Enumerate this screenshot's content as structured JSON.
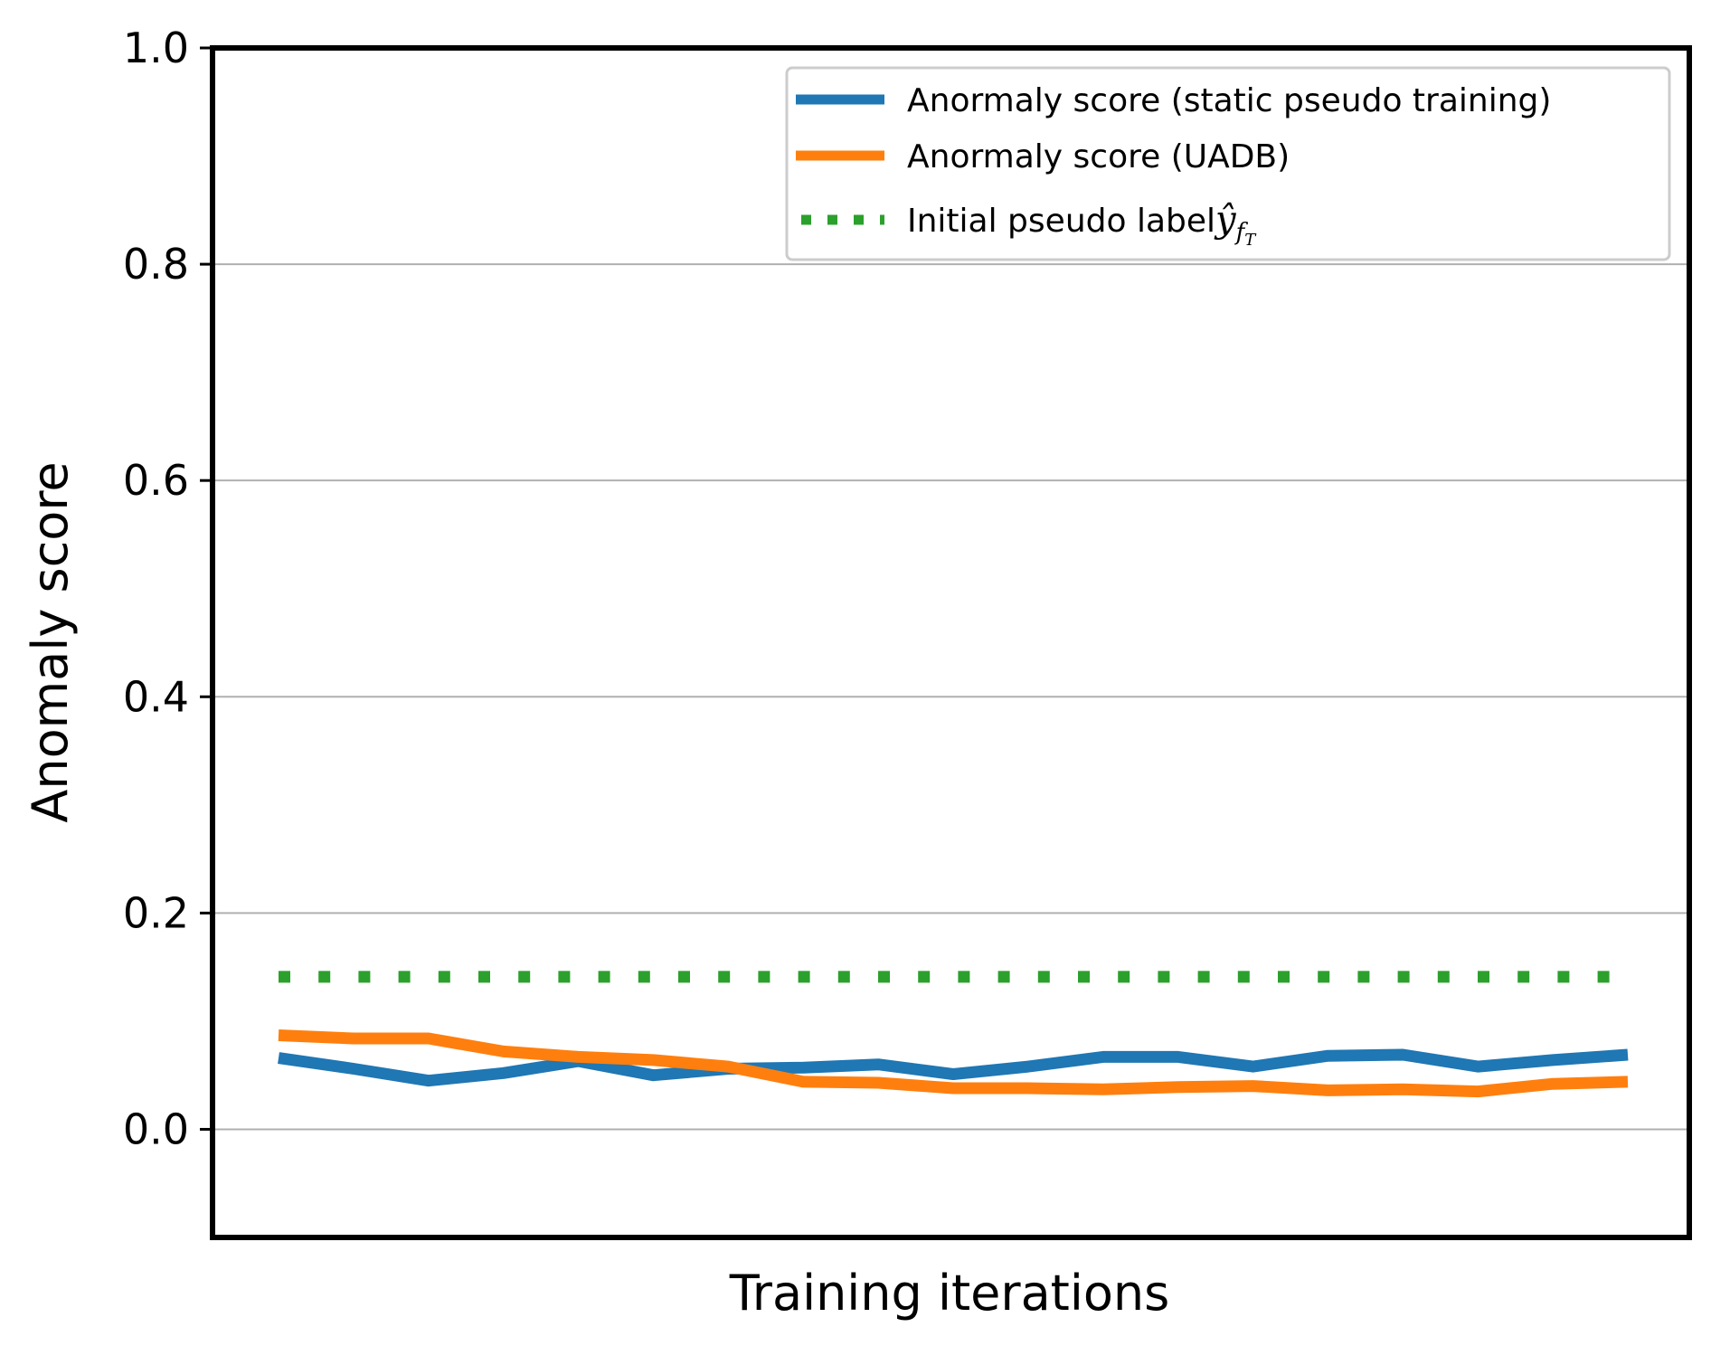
{
  "chart_data": {
    "type": "line",
    "title": "",
    "xlabel": "Training iterations",
    "ylabel": "Anomaly score",
    "ylim": [
      -0.1,
      1.0
    ],
    "yticks": [
      0.0,
      0.2,
      0.4,
      0.6,
      0.8,
      1.0
    ],
    "ytick_labels": [
      "0.0",
      "0.2",
      "0.4",
      "0.6",
      "0.8",
      "1.0"
    ],
    "x_ticks_shown": false,
    "grid": "horizontal",
    "legend_position": "upper-right",
    "x": [
      0,
      1,
      2,
      3,
      4,
      5,
      6,
      7,
      8,
      9,
      10,
      11,
      12,
      13,
      14,
      15,
      16,
      17,
      18
    ],
    "series": [
      {
        "name": "Anormaly score (static pseudo training)",
        "color": "#1f77b4",
        "style": "solid",
        "values": [
          0.066,
          0.056,
          0.045,
          0.052,
          0.063,
          0.05,
          0.056,
          0.057,
          0.06,
          0.051,
          0.058,
          0.067,
          0.067,
          0.058,
          0.068,
          0.069,
          0.058,
          0.064,
          0.069
        ]
      },
      {
        "name": "Anormaly score (UADB)",
        "color": "#ff7f0e",
        "style": "solid",
        "values": [
          0.087,
          0.084,
          0.084,
          0.072,
          0.067,
          0.064,
          0.058,
          0.044,
          0.043,
          0.038,
          0.038,
          0.037,
          0.039,
          0.04,
          0.036,
          0.037,
          0.035,
          0.042,
          0.044
        ]
      },
      {
        "name": "Initial pseudo label",
        "name_math_base": "ŷ",
        "name_math_sub": "f",
        "name_math_subsub": "T",
        "color": "#2ca02c",
        "style": "dotted",
        "values": [
          0.141,
          0.141,
          0.141,
          0.141,
          0.141,
          0.141,
          0.141,
          0.141,
          0.141,
          0.141,
          0.141,
          0.141,
          0.141,
          0.141,
          0.141,
          0.141,
          0.141,
          0.141,
          0.141
        ]
      }
    ]
  }
}
